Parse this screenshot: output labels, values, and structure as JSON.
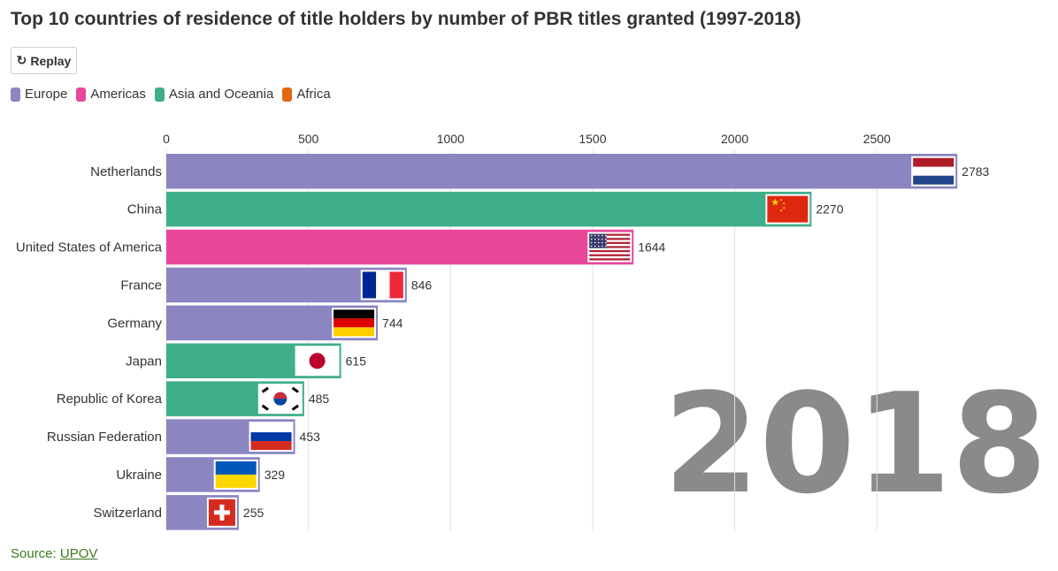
{
  "title": "Top 10 countries of residence of title holders by number of PBR titles granted (1997-2018)",
  "replay": {
    "label": "Replay",
    "icon": "replay-icon"
  },
  "legend": [
    {
      "name": "Europe",
      "color": "#8b85c1"
    },
    {
      "name": "Americas",
      "color": "#e8479a"
    },
    {
      "name": "Asia and Oceania",
      "color": "#3eae8b"
    },
    {
      "name": "Africa",
      "color": "#e0690f"
    }
  ],
  "source": {
    "prefix": "Source: ",
    "link_text": "UPOV"
  },
  "chart_data": {
    "type": "bar",
    "orientation": "horizontal",
    "title": "Top 10 countries of residence of title holders by number of PBR titles granted (1997-2018)",
    "year_label": "2018",
    "xlim": [
      0,
      2783
    ],
    "x_ticks": [
      0,
      500,
      1000,
      1500,
      2000,
      2500
    ],
    "grid": true,
    "categories": [
      "Netherlands",
      "China",
      "United States of America",
      "France",
      "Germany",
      "Japan",
      "Republic of Korea",
      "Russian Federation",
      "Ukraine",
      "Switzerland"
    ],
    "values": [
      2783,
      2270,
      1644,
      846,
      744,
      615,
      485,
      453,
      329,
      255
    ],
    "regions": [
      "Europe",
      "Asia and Oceania",
      "Americas",
      "Europe",
      "Europe",
      "Asia and Oceania",
      "Asia and Oceania",
      "Europe",
      "Europe",
      "Europe"
    ],
    "flags": [
      "netherlands-flag-icon",
      "china-flag-icon",
      "usa-flag-icon",
      "france-flag-icon",
      "germany-flag-icon",
      "japan-flag-icon",
      "korea-flag-icon",
      "russia-flag-icon",
      "ukraine-flag-icon",
      "switzerland-flag-icon"
    ]
  }
}
